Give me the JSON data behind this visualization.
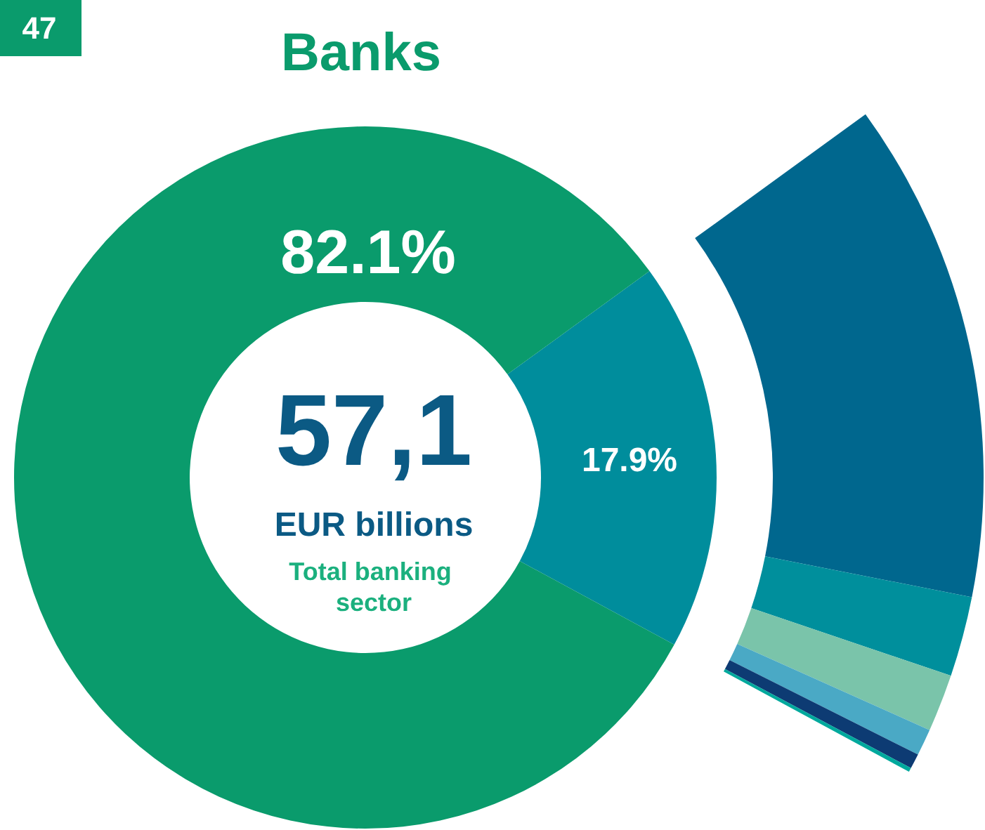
{
  "chart_data": {
    "type": "donut",
    "title": "Banks",
    "annotations": [
      "47",
      "57,1",
      "EUR billions",
      "Total banking sector"
    ],
    "series": [
      {
        "values": [
          17.9,
          82.1
        ],
        "colors": [
          "#008d9c",
          "#0a9b6c"
        ],
        "value_labels": [
          "17.9%",
          "82.1%"
        ]
      },
      {
        "values": [
          73.2,
          11.7,
          8.4,
          3.9,
          2.2,
          0.6
        ],
        "colors": [
          "#00678e",
          "#008f9c",
          "#7ac4aa",
          "#4aa9c5",
          "#0d3b73",
          "#00a99d"
        ]
      }
    ]
  }
}
